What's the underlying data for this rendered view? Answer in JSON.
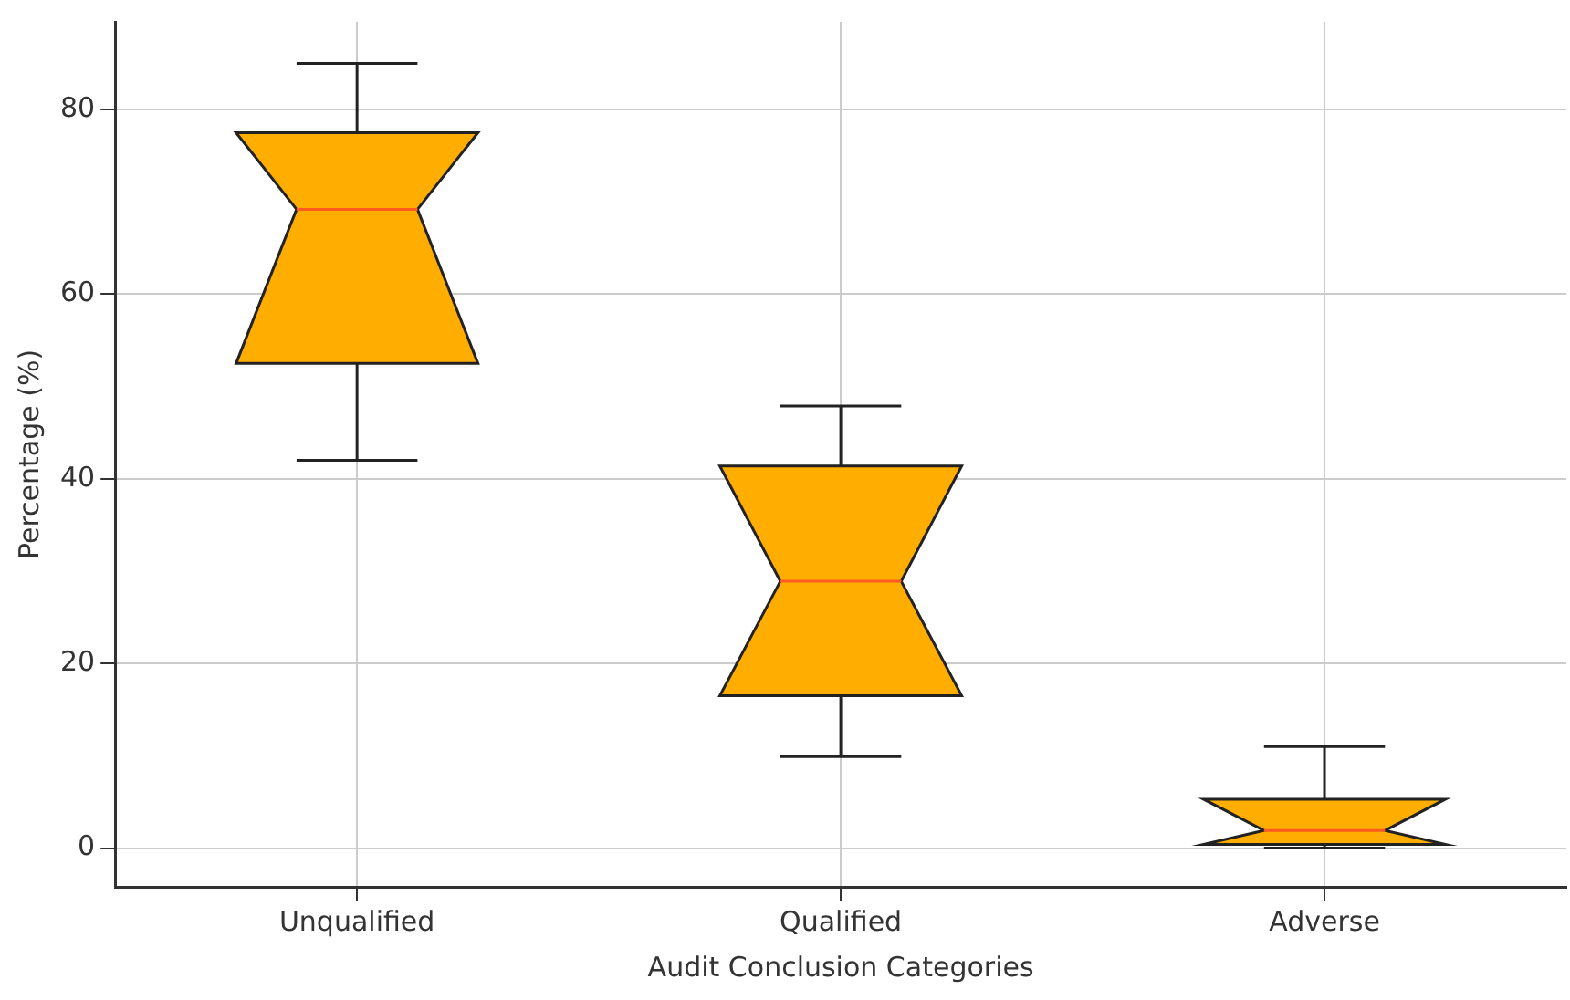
{
  "chart_data": {
    "type": "box",
    "xlabel": "Audit Conclusion Categories",
    "ylabel": "Percentage (%)",
    "categories": [
      "Unqualified",
      "Qualified",
      "Adverse"
    ],
    "boxes": [
      {
        "low": 42,
        "q1": 52.5,
        "median": 69.2,
        "q3": 77.5,
        "high": 85
      },
      {
        "low": 9.9,
        "q1": 16.5,
        "median": 28.9,
        "q3": 41.4,
        "high": 47.9
      },
      {
        "low": 0,
        "q1": 0.4,
        "median": 1.9,
        "q3": 5.3,
        "high": 11
      }
    ],
    "color": "#ffae00",
    "ylim": [
      -4.2,
      89.5
    ],
    "yticks": [
      0,
      20,
      40,
      60,
      80
    ],
    "grid": true
  }
}
